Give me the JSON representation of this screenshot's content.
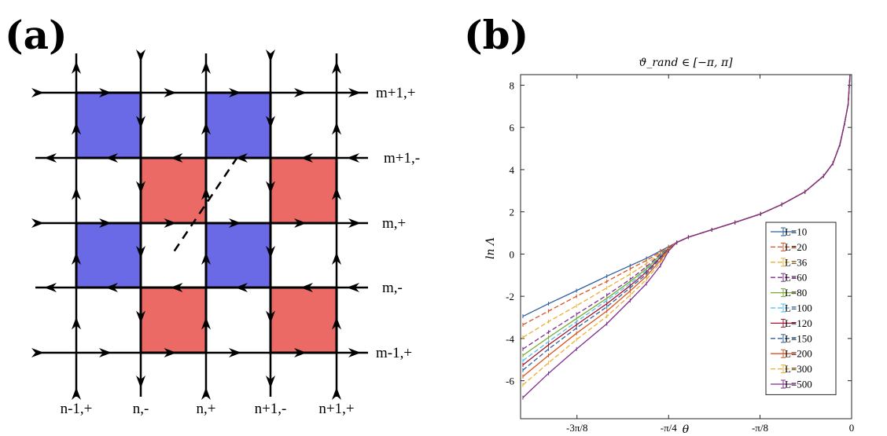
{
  "panel_a": {
    "label": "(a)",
    "row_labels": [
      "m+1,+",
      "m+1,-",
      "m,+",
      "m,-",
      "m-1,+"
    ],
    "column_labels": [
      "n-1,+",
      "n,-",
      "n,+",
      "n+1,-",
      "n+1,+"
    ],
    "colors": {
      "blue": "#6a6ae6",
      "red": "#eb6a66",
      "line": "#000000"
    }
  },
  "panel_b": {
    "label": "(b)"
  },
  "chart_data": {
    "type": "line",
    "title": "ϑ_rand ∈ [−π, π]",
    "xlabel": "θ",
    "ylabel": "ln Λ",
    "xlim": [
      -1.42,
      0.0
    ],
    "ylim": [
      -7.8,
      8.5
    ],
    "xticks": [
      -1.178,
      -0.785,
      -0.393,
      0.0
    ],
    "xtick_labels": [
      "-3π/8",
      "-π/4",
      "-π/8",
      "0"
    ],
    "yticks": [
      -6,
      -4,
      -2,
      0,
      2,
      4,
      6,
      8
    ],
    "ytick_labels": [
      "-6",
      "-4",
      "-2",
      "0",
      "2",
      "4",
      "6",
      "8"
    ],
    "legend_position": "bottom-right",
    "x": [
      -1.41,
      -1.3,
      -1.18,
      -1.05,
      -0.95,
      -0.88,
      -0.82,
      -0.785,
      -0.75,
      -0.7,
      -0.6,
      -0.5,
      -0.39,
      -0.3,
      -0.2,
      -0.12,
      -0.08,
      -0.05,
      -0.03,
      -0.015,
      -0.005
    ],
    "series": [
      {
        "name": "L=10",
        "color": "#2f5f9f",
        "dash": "",
        "values": [
          -2.95,
          -2.35,
          -1.73,
          -1.05,
          -0.55,
          -0.2,
          0.15,
          0.35,
          0.55,
          0.8,
          1.15,
          1.5,
          1.9,
          2.35,
          2.95,
          3.7,
          4.3,
          5.2,
          6.2,
          7.1,
          8.8
        ]
      },
      {
        "name": "L=20",
        "color": "#d9531e",
        "dash": "6,3",
        "values": [
          -3.35,
          -2.7,
          -2.0,
          -1.3,
          -0.7,
          -0.3,
          0.1,
          0.33,
          0.55,
          0.8,
          1.15,
          1.5,
          1.9,
          2.35,
          2.95,
          3.7,
          4.3,
          5.2,
          6.2,
          7.1,
          8.8
        ]
      },
      {
        "name": "L=36",
        "color": "#e8b030",
        "dash": "6,3",
        "values": [
          -3.95,
          -3.2,
          -2.45,
          -1.6,
          -0.95,
          -0.45,
          0.05,
          0.32,
          0.55,
          0.8,
          1.15,
          1.5,
          1.9,
          2.35,
          2.95,
          3.7,
          4.3,
          5.2,
          6.2,
          7.1,
          8.8
        ]
      },
      {
        "name": "L=60",
        "color": "#7e2f8e",
        "dash": "6,3",
        "values": [
          -4.5,
          -3.7,
          -2.85,
          -1.95,
          -1.2,
          -0.6,
          0.0,
          0.3,
          0.55,
          0.8,
          1.15,
          1.5,
          1.9,
          2.35,
          2.95,
          3.7,
          4.3,
          5.2,
          6.2,
          7.1,
          8.8
        ]
      },
      {
        "name": "L=80",
        "color": "#77ac30",
        "dash": "",
        "values": [
          -4.8,
          -3.95,
          -3.05,
          -2.1,
          -1.3,
          -0.7,
          -0.05,
          0.28,
          0.55,
          0.8,
          1.15,
          1.5,
          1.9,
          2.35,
          2.95,
          3.7,
          4.3,
          5.2,
          6.2,
          7.1,
          8.8
        ]
      },
      {
        "name": "L=100",
        "color": "#4dbeee",
        "dash": "6,3",
        "values": [
          -5.05,
          -4.15,
          -3.2,
          -2.2,
          -1.4,
          -0.78,
          -0.1,
          0.27,
          0.55,
          0.8,
          1.15,
          1.5,
          1.9,
          2.35,
          2.95,
          3.7,
          4.3,
          5.2,
          6.2,
          7.1,
          8.8
        ]
      },
      {
        "name": "L=120",
        "color": "#a2142f",
        "dash": "",
        "values": [
          -5.25,
          -4.3,
          -3.35,
          -2.35,
          -1.5,
          -0.85,
          -0.15,
          0.26,
          0.55,
          0.8,
          1.15,
          1.5,
          1.9,
          2.35,
          2.95,
          3.7,
          4.3,
          5.2,
          6.2,
          7.1,
          8.8
        ]
      },
      {
        "name": "L=150",
        "color": "#2f5f9f",
        "dash": "6,3",
        "values": [
          -5.5,
          -4.5,
          -3.5,
          -2.5,
          -1.6,
          -0.95,
          -0.2,
          0.25,
          0.55,
          0.8,
          1.15,
          1.5,
          1.9,
          2.35,
          2.95,
          3.7,
          4.3,
          5.2,
          6.2,
          7.1,
          8.8
        ]
      },
      {
        "name": "L=200",
        "color": "#d9531e",
        "dash": "",
        "values": [
          -5.8,
          -4.8,
          -3.75,
          -2.7,
          -1.75,
          -1.05,
          -0.3,
          0.23,
          0.55,
          0.8,
          1.15,
          1.5,
          1.9,
          2.35,
          2.95,
          3.7,
          4.3,
          5.2,
          6.2,
          7.1,
          8.8
        ]
      },
      {
        "name": "L=300",
        "color": "#e8b030",
        "dash": "6,3",
        "values": [
          -6.2,
          -5.15,
          -4.05,
          -2.95,
          -1.95,
          -1.2,
          -0.4,
          0.2,
          0.55,
          0.8,
          1.15,
          1.5,
          1.9,
          2.35,
          2.95,
          3.7,
          4.3,
          5.2,
          6.2,
          7.1,
          8.8
        ]
      },
      {
        "name": "L=500",
        "color": "#7e2f8e",
        "dash": "",
        "values": [
          -6.8,
          -5.65,
          -4.5,
          -3.3,
          -2.2,
          -1.4,
          -0.55,
          0.15,
          0.55,
          0.8,
          1.15,
          1.5,
          1.9,
          2.35,
          2.95,
          3.7,
          4.3,
          5.2,
          6.2,
          7.1,
          8.8
        ]
      }
    ]
  }
}
